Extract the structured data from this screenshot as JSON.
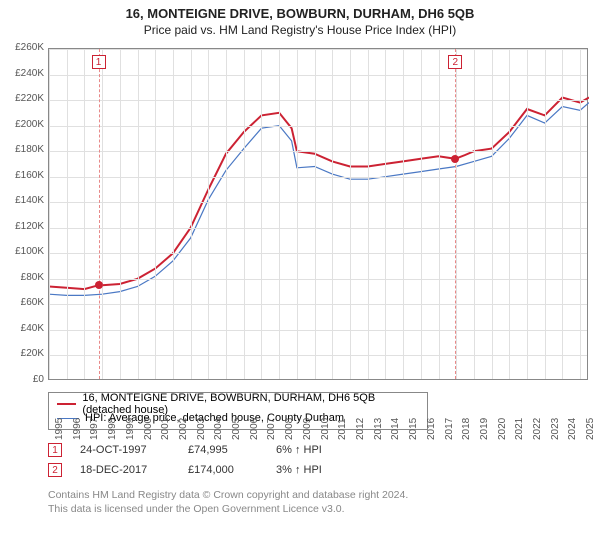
{
  "title": "16, MONTEIGNE DRIVE, BOWBURN, DURHAM, DH6 5QB",
  "subtitle": "Price paid vs. HM Land Registry's House Price Index (HPI)",
  "chart": {
    "type": "line",
    "background_color": "#ffffff",
    "grid_color": "#e0e0e0",
    "border_color": "#888888",
    "xlim": [
      1995,
      2025.5
    ],
    "ylim": [
      0,
      260000
    ],
    "ytick_step": 20000,
    "xticks": [
      1995,
      1996,
      1997,
      1998,
      1999,
      2000,
      2001,
      2002,
      2003,
      2004,
      2005,
      2006,
      2007,
      2008,
      2009,
      2010,
      2011,
      2012,
      2013,
      2014,
      2015,
      2016,
      2017,
      2018,
      2019,
      2020,
      2021,
      2022,
      2023,
      2024,
      2025
    ],
    "yticks_labels": [
      "£0",
      "£20K",
      "£40K",
      "£60K",
      "£80K",
      "£100K",
      "£120K",
      "£140K",
      "£160K",
      "£180K",
      "£200K",
      "£220K",
      "£240K",
      "£260K"
    ],
    "label_fontsize": 10,
    "label_color": "#555555",
    "series": {
      "subject": {
        "label": "16, MONTEIGNE DRIVE, BOWBURN, DURHAM, DH6 5QB (detached house)",
        "color": "#cc2233",
        "line_width": 2,
        "x": [
          1995,
          1996,
          1997,
          1997.8,
          1998,
          1999,
          2000,
          2001,
          2002,
          2003,
          2004,
          2005,
          2006,
          2007,
          2008,
          2008.7,
          2009,
          2010,
          2011,
          2012,
          2013,
          2014,
          2015,
          2016,
          2017,
          2017.95,
          2018.5,
          2019,
          2020,
          2021,
          2022,
          2023,
          2024,
          2025,
          2025.5
        ],
        "y": [
          74000,
          73000,
          72000,
          74995,
          75000,
          76000,
          80000,
          88000,
          100000,
          120000,
          150000,
          178000,
          195000,
          208000,
          210000,
          198000,
          180000,
          178000,
          172000,
          168000,
          168000,
          170000,
          172000,
          174000,
          176000,
          174000,
          177000,
          180000,
          182000,
          195000,
          213000,
          208000,
          222000,
          218000,
          222000
        ]
      },
      "hpi": {
        "label": "HPI: Average price, detached house, County Durham",
        "color": "#4a78c4",
        "line_width": 1.2,
        "x": [
          1995,
          1996,
          1997,
          1998,
          1999,
          2000,
          2001,
          2002,
          2003,
          2004,
          2005,
          2006,
          2007,
          2008,
          2008.7,
          2009,
          2010,
          2011,
          2012,
          2013,
          2014,
          2015,
          2016,
          2017,
          2018,
          2019,
          2020,
          2021,
          2022,
          2023,
          2024,
          2025,
          2025.5
        ],
        "y": [
          68000,
          67000,
          67000,
          68000,
          70000,
          74000,
          82000,
          94000,
          112000,
          142000,
          165000,
          182000,
          198000,
          200000,
          188000,
          167000,
          168000,
          162000,
          158000,
          158000,
          160000,
          162000,
          164000,
          166000,
          168000,
          172000,
          176000,
          190000,
          208000,
          202000,
          215000,
          212000,
          218000
        ]
      }
    },
    "events": [
      {
        "n": "1",
        "date_x": 1997.8,
        "date_label": "24-OCT-1997",
        "price": "£74,995",
        "delta": "6% ↑ HPI",
        "marker_y": 74995
      },
      {
        "n": "2",
        "date_x": 2017.95,
        "date_label": "18-DEC-2017",
        "price": "£174,000",
        "delta": "3% ↑ HPI",
        "marker_y": 174000
      }
    ],
    "event_line_color": "#e88888",
    "event_box_border": "#cc2233",
    "event_box_text": "#cc2233"
  },
  "legend": {
    "rows": [
      {
        "color": "#cc2233",
        "width": 2
      },
      {
        "color": "#4a78c4",
        "width": 1
      }
    ]
  },
  "footer": {
    "line1": "Contains HM Land Registry data © Crown copyright and database right 2024.",
    "line2": "This data is licensed under the Open Government Licence v3.0."
  }
}
